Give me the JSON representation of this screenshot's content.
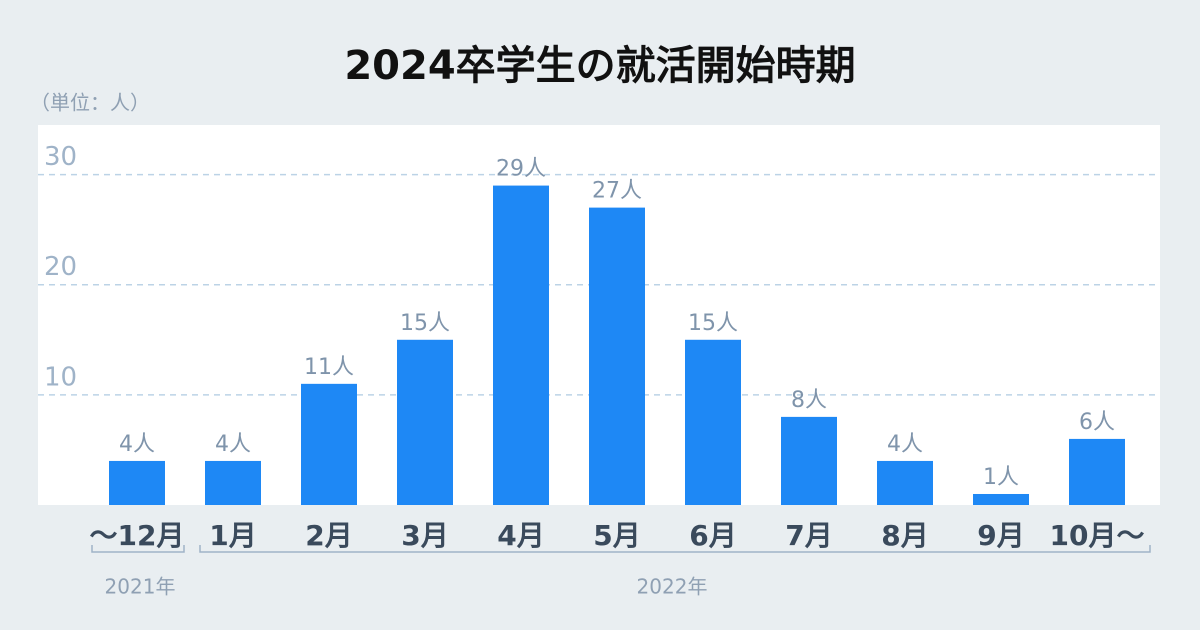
{
  "chart_data": {
    "type": "bar",
    "title": "2024卒学生の就活開始時期",
    "unit_label": "（単位：人）",
    "categories": [
      "〜12月",
      "1月",
      "2月",
      "3月",
      "4月",
      "5月",
      "6月",
      "7月",
      "8月",
      "9月",
      "10月〜"
    ],
    "values": [
      4,
      4,
      11,
      15,
      29,
      27,
      15,
      8,
      4,
      1,
      6
    ],
    "value_labels": [
      "4人",
      "4人",
      "11人",
      "15人",
      "29人",
      "27人",
      "15人",
      "8人",
      "4人",
      "1人",
      "6人"
    ],
    "category_groups": [
      {
        "label": "2021年"
      },
      {
        "label": "2022年"
      }
    ],
    "color": "#1e88f5",
    "ylim": [
      0,
      34.5
    ],
    "yticks": [
      10,
      20,
      30
    ],
    "grid": true
  }
}
